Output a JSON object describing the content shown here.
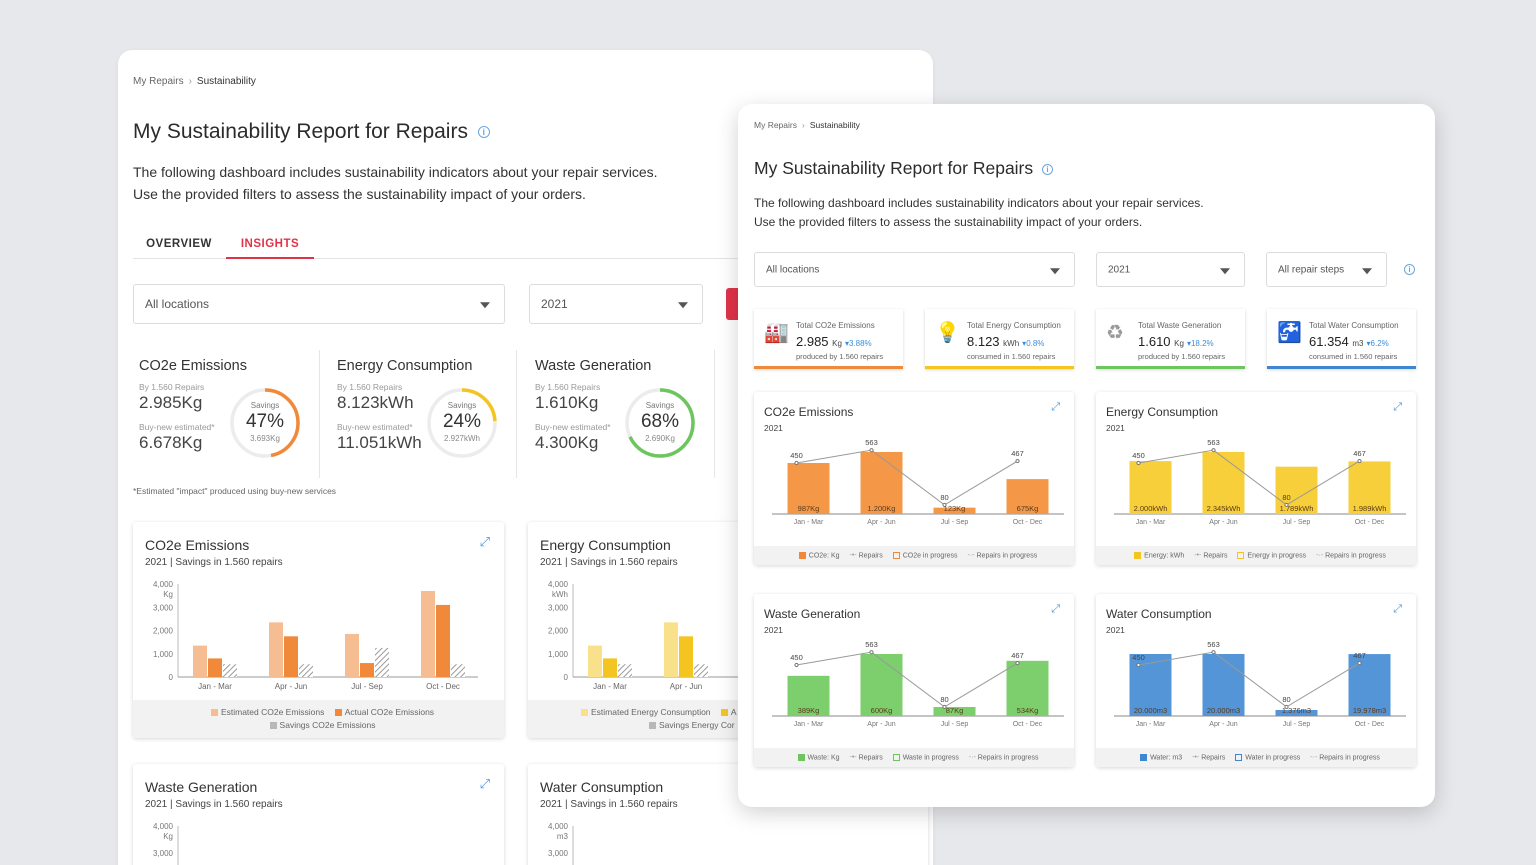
{
  "breadcrumb": {
    "parent": "My Repairs",
    "current": "Sustainability"
  },
  "title": "My Sustainability Report for Repairs",
  "info_icon": "i",
  "description": {
    "line1": "The following dashboard includes sustainability indicators about your repair services.",
    "line2": "Use the provided filters to assess the sustainability impact of your orders."
  },
  "tabs": {
    "overview": "OVERVIEW",
    "insights": "INSIGHTS"
  },
  "filters": {
    "location": "All locations",
    "year": "2021",
    "repair_steps": "All repair steps"
  },
  "colors": {
    "co2": "#f08a3a",
    "energy": "#f4c521",
    "waste": "#6cc55d",
    "water": "#3f86d0",
    "accent": "#e0334a"
  },
  "kpis": [
    {
      "name": "CO2e Emissions",
      "by": "By 1.560 Repairs",
      "actual": "2.985Kg",
      "buynew_label": "Buy-new estimated*",
      "buynew": "6.678Kg",
      "savings_label": "Savings",
      "percent": "47%",
      "saved": "3.693Kg",
      "fraction": 0.47
    },
    {
      "name": "Energy Consumption",
      "by": "By 1.560 Repairs",
      "actual": "8.123kWh",
      "buynew_label": "Buy-new estimated*",
      "buynew": "11.051kWh",
      "savings_label": "Savings",
      "percent": "24%",
      "saved": "2.927kWh",
      "fraction": 0.24
    },
    {
      "name": "Waste Generation",
      "by": "By 1.560 Repairs",
      "actual": "1.610Kg",
      "buynew_label": "Buy-new estimated*",
      "buynew": "4.300Kg",
      "savings_label": "Savings",
      "percent": "68%",
      "saved": "2.690Kg",
      "fraction": 0.68
    }
  ],
  "footnote": "*Estimated \"impact\" produced using buy-new services",
  "back_charts": {
    "co2": {
      "title": "CO2e Emissions",
      "subtitle": "2021 | Savings in 1.560 repairs",
      "unit": "Kg",
      "legend": [
        "Estimated CO2e Emissions",
        "Actual CO2e Emissions",
        "Savings CO2e Emissions"
      ]
    },
    "energy": {
      "title": "Energy Consumption",
      "subtitle": "2021 | Savings in 1.560 repairs",
      "unit": "kWh",
      "legend": [
        "Estimated Energy Consumption",
        "A",
        "Savings Energy Cor"
      ]
    },
    "waste": {
      "title": "Waste Generation",
      "subtitle": "2021 | Savings in 1.560 repairs",
      "unit": "Kg"
    },
    "water": {
      "title": "Water Consumption",
      "subtitle": "2021 | Savings in 1.560 repairs",
      "unit": "m3"
    }
  },
  "front_summary": [
    {
      "title": "Total CO2e Emissions",
      "value": "2.985",
      "unit": "Kg",
      "change": "3.88%",
      "note": "produced by 1.560 repairs",
      "icon": "factory-icon"
    },
    {
      "title": "Total Energy Consumption",
      "value": "8.123",
      "unit": "kWh",
      "change": "0.8%",
      "note": "consumed in 1.560 repairs",
      "icon": "bulb-icon"
    },
    {
      "title": "Total Waste Generation",
      "value": "1.610",
      "unit": "Kg",
      "change": "18.2%",
      "note": "produced by 1.560 repairs",
      "icon": "recycle-bin-icon"
    },
    {
      "title": "Total Water Consumption",
      "value": "61.354",
      "unit": "m3",
      "change": "6.2%",
      "note": "consumed in 1.560 repairs",
      "icon": "water-tap-icon"
    }
  ],
  "front_charts": [
    {
      "title": "CO2e Emissions",
      "year": "2021",
      "legend": [
        "CO2e: Kg",
        "Repairs",
        "CO2e in progress",
        "Repairs in progress"
      ]
    },
    {
      "title": "Energy Consumption",
      "year": "2021",
      "legend": [
        "Energy: kWh",
        "Repairs",
        "Energy in progress",
        "Repairs in progress"
      ]
    },
    {
      "title": "Waste Generation",
      "year": "2021",
      "legend": [
        "Waste: Kg",
        "Repairs",
        "Waste in progress",
        "Repairs in progress"
      ]
    },
    {
      "title": "Water Consumption",
      "year": "2021",
      "legend": [
        "Water: m3",
        "Repairs",
        "Water in progress",
        "Repairs in progress"
      ]
    }
  ],
  "chart_data": [
    {
      "type": "bar",
      "title": "CO2e Emissions",
      "subtitle": "2021 | Savings in 1.560 repairs",
      "ylabel": "Kg",
      "ylim": [
        0,
        4000
      ],
      "yticks": [
        "4,000",
        "3,000",
        "2,000",
        "1,000",
        "0"
      ],
      "categories": [
        "Jan - Mar",
        "Apr - Jun",
        "Jul - Sep",
        "Oct - Dec"
      ],
      "series": [
        {
          "name": "Estimated CO2e Emissions",
          "values": [
            1350,
            2350,
            1850,
            3700
          ]
        },
        {
          "name": "Actual CO2e Emissions",
          "values": [
            800,
            1750,
            600,
            3100
          ]
        },
        {
          "name": "Savings CO2e Emissions",
          "values": [
            550,
            550,
            1250,
            550
          ]
        }
      ]
    },
    {
      "type": "bar",
      "title": "Energy Consumption",
      "subtitle": "2021 | Savings in 1.560 repairs",
      "ylabel": "kWh",
      "ylim": [
        0,
        4000
      ],
      "yticks": [
        "4,000",
        "3,000",
        "2,000",
        "1,000",
        "0"
      ],
      "categories": [
        "Jan - Mar",
        "Apr - Jun"
      ],
      "series": [
        {
          "name": "Estimated Energy Consumption",
          "values": [
            1350,
            2350
          ]
        },
        {
          "name": "Actual Energy Consumption",
          "values": [
            800,
            1750
          ]
        },
        {
          "name": "Savings Energy Consumption",
          "values": [
            550,
            550
          ]
        }
      ]
    },
    {
      "type": "bar",
      "title": "Waste Generation",
      "ylabel": "Kg",
      "ylim": [
        0,
        4000
      ],
      "yticks": [
        "4,000",
        "3,000"
      ],
      "categories": [],
      "series": []
    },
    {
      "type": "bar",
      "title": "Water Consumption",
      "ylabel": "m3",
      "ylim": [
        0,
        4000
      ],
      "yticks": [
        "4,000",
        "3,000"
      ],
      "categories": [],
      "series": []
    },
    {
      "type": "bar+line",
      "title": "CO2e Emissions",
      "year": "2021",
      "categories": [
        "Jan - Mar",
        "Apr - Jun",
        "Jul - Sep",
        "Oct - Dec"
      ],
      "values": [
        987,
        1200,
        123,
        675
      ],
      "value_labels": [
        "987Kg",
        "1.200Kg",
        "123Kg",
        "675Kg"
      ],
      "repairs": [
        450,
        563,
        80,
        467
      ]
    },
    {
      "type": "bar+line",
      "title": "Energy Consumption",
      "year": "2021",
      "categories": [
        "Jan - Mar",
        "Apr - Jun",
        "Jul - Sep",
        "Oct - Dec"
      ],
      "values": [
        2000,
        2345,
        1789,
        1989
      ],
      "value_labels": [
        "2.000kWh",
        "2.345kWh",
        "1.789kWh",
        "1.989kWh"
      ],
      "repairs": [
        450,
        563,
        80,
        467
      ]
    },
    {
      "type": "bar+line",
      "title": "Waste Generation",
      "year": "2021",
      "categories": [
        "Jan - Mar",
        "Apr - Jun",
        "Jul - Sep",
        "Oct - Dec"
      ],
      "values": [
        389,
        600,
        87,
        534
      ],
      "value_labels": [
        "389Kg",
        "600Kg",
        "87Kg",
        "534Kg"
      ],
      "repairs": [
        450,
        563,
        80,
        467
      ]
    },
    {
      "type": "bar+line",
      "title": "Water Consumption",
      "year": "2021",
      "categories": [
        "Jan - Mar",
        "Apr - Jun",
        "Jul - Sep",
        "Oct - Dec"
      ],
      "values": [
        20000,
        20000,
        1376,
        19978
      ],
      "value_labels": [
        "20.000m3",
        "20.000m3",
        "1.376m3",
        "19.978m3"
      ],
      "repairs": [
        450,
        563,
        80,
        467
      ]
    }
  ]
}
